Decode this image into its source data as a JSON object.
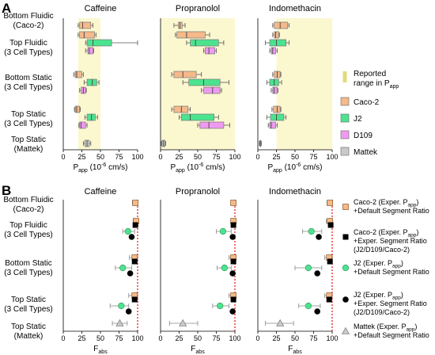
{
  "panel_labels": [
    "A",
    "B"
  ],
  "drugs": [
    "Caffeine",
    "Propranolol",
    "Indomethacin"
  ],
  "categories": [
    [
      "Bottom Fluidic",
      "(Caco-2)"
    ],
    [
      "Top Fluidic",
      "(3 Cell Types)"
    ],
    [
      "Bottom Static",
      "(3 Cell Types)"
    ],
    [
      "Top Static",
      "(3 Cell Types)"
    ],
    [
      "Top Static",
      "(Mattek)"
    ]
  ],
  "colors": {
    "caco2": "#f5b98a",
    "j2": "#4ce38f",
    "d109": "#ef9af0",
    "mattek": "#c9c9c9",
    "range": "#fbf7cf",
    "green_dot": "#4ce38f",
    "red_line": "#e02424"
  },
  "legend_A": {
    "range": [
      "Reported",
      "range in P",
      "app"
    ],
    "items": [
      {
        "label": "Caco-2",
        "color": "#f5b98a"
      },
      {
        "label": "J2",
        "color": "#4ce38f"
      },
      {
        "label": "D109",
        "color": "#ef9af0"
      },
      {
        "label": "Mattek",
        "color": "#c9c9c9"
      }
    ]
  },
  "legend_B": [
    {
      "marker": "square-orange",
      "lines": [
        "Caco-2 (Exper. P",
        "app",
        ")",
        "+Default Segment Ratio"
      ]
    },
    {
      "marker": "square-black",
      "lines": [
        "Caco-2 (Exper. P",
        "app",
        ")",
        "+Exper. Segment Ratio",
        "(J2/D109/Caco-2)"
      ]
    },
    {
      "marker": "circle-green",
      "lines": [
        "J2 (Exper. P",
        "app",
        ")",
        "+Default Segment Ratio"
      ]
    },
    {
      "marker": "circle-black",
      "lines": [
        "J2 (Exper. P",
        "app",
        ")",
        "+Exper. Segment Ratio",
        "(J2/D109/Caco-2)"
      ]
    },
    {
      "marker": "triangle-gray",
      "lines": [
        "Mattek (Exper. P",
        "app",
        ")",
        "+Default Segment Ratio"
      ]
    }
  ],
  "xaxis_A": {
    "label_main": "P",
    "label_sub": "app",
    "label_unit": " (10",
    "label_exp": "-6",
    "label_end": " cm/s)",
    "ticks": [
      0,
      25,
      50,
      75,
      100
    ],
    "range": [
      0,
      100
    ]
  },
  "xaxis_B": {
    "label_main": "F",
    "label_sub": "abs",
    "ticks": [
      0,
      25,
      50,
      75,
      100
    ],
    "range": [
      0,
      100
    ]
  },
  "chart_data": [
    {
      "type": "box",
      "title": "Caffeine",
      "panel": "A",
      "reported_range": [
        20,
        50
      ],
      "rows": [
        {
          "category": "Bottom Fluidic (Caco-2)",
          "boxes": [
            {
              "series": "Caco-2",
              "min": 20,
              "q1": 22,
              "median": 26,
              "q3": 37,
              "max": 40
            }
          ]
        },
        {
          "category": "Top Fluidic (3 Cell Types)",
          "boxes": [
            {
              "series": "Caco-2",
              "min": 20,
              "q1": 22,
              "median": 28,
              "q3": 42,
              "max": 44
            },
            {
              "series": "J2",
              "min": 30,
              "q1": 32,
              "median": 40,
              "q3": 65,
              "max": 100
            },
            {
              "series": "D109",
              "min": 30,
              "q1": 33,
              "median": 35,
              "q3": 40,
              "max": 41
            }
          ]
        },
        {
          "category": "Bottom Static (3 Cell Types)",
          "boxes": [
            {
              "series": "Caco-2",
              "min": 14,
              "q1": 16,
              "median": 18,
              "q3": 25,
              "max": 27
            },
            {
              "series": "J2",
              "min": 28,
              "q1": 32,
              "median": 39,
              "q3": 45,
              "max": 48
            },
            {
              "series": "D109",
              "min": 22,
              "q1": 24,
              "median": 27,
              "q3": 30,
              "max": 31
            }
          ]
        },
        {
          "category": "Top Static (3 Cell Types)",
          "boxes": [
            {
              "series": "Caco-2",
              "min": 15,
              "q1": 16,
              "median": 18,
              "q3": 22,
              "max": 23
            },
            {
              "series": "J2",
              "min": 29,
              "q1": 32,
              "median": 38,
              "q3": 43,
              "max": 46
            },
            {
              "series": "D109",
              "min": 21,
              "q1": 22,
              "median": 24,
              "q3": 30,
              "max": 32
            }
          ]
        },
        {
          "category": "Top Static (Mattek)",
          "boxes": [
            {
              "series": "Mattek",
              "min": 27,
              "q1": 29,
              "median": 32,
              "q3": 35,
              "max": 37
            }
          ]
        }
      ]
    },
    {
      "type": "box",
      "title": "Propranolol",
      "panel": "A",
      "reported_range": [
        0,
        100
      ],
      "rows": [
        {
          "category": "Bottom Fluidic (Caco-2)",
          "boxes": [
            {
              "series": "Caco-2",
              "min": 18,
              "q1": 24,
              "median": 26,
              "q3": 29,
              "max": 33
            }
          ]
        },
        {
          "category": "Top Fluidic (3 Cell Types)",
          "boxes": [
            {
              "series": "Caco-2",
              "min": 20,
              "q1": 22,
              "median": 35,
              "q3": 60,
              "max": 66
            },
            {
              "series": "J2",
              "min": 35,
              "q1": 40,
              "median": 47,
              "q3": 78,
              "max": 85
            },
            {
              "series": "D109",
              "min": 58,
              "q1": 60,
              "median": 65,
              "q3": 73,
              "max": 75
            }
          ]
        },
        {
          "category": "Bottom Static (3 Cell Types)",
          "boxes": [
            {
              "series": "Caco-2",
              "min": 15,
              "q1": 18,
              "median": 30,
              "q3": 48,
              "max": 55
            },
            {
              "series": "J2",
              "min": 30,
              "q1": 38,
              "median": 58,
              "q3": 80,
              "max": 92
            },
            {
              "series": "D109",
              "min": 55,
              "q1": 58,
              "median": 70,
              "q3": 80,
              "max": 82
            }
          ]
        },
        {
          "category": "Top Static (3 Cell Types)",
          "boxes": [
            {
              "series": "Caco-2",
              "min": 15,
              "q1": 18,
              "median": 28,
              "q3": 37,
              "max": 40
            },
            {
              "series": "J2",
              "min": 25,
              "q1": 28,
              "median": 40,
              "q3": 72,
              "max": 78
            },
            {
              "series": "D109",
              "min": 50,
              "q1": 53,
              "median": 65,
              "q3": 85,
              "max": 93
            }
          ]
        },
        {
          "category": "Top Static (Mattek)",
          "boxes": [
            {
              "series": "Mattek",
              "min": 1,
              "q1": 2,
              "median": 4,
              "q3": 6,
              "max": 7
            }
          ]
        }
      ]
    },
    {
      "type": "box",
      "title": "Indomethacin",
      "panel": "A",
      "reported_range": [
        25,
        100
      ],
      "rows": [
        {
          "category": "Bottom Fluidic (Caco-2)",
          "boxes": [
            {
              "series": "Caco-2",
              "min": 20,
              "q1": 22,
              "median": 30,
              "q3": 40,
              "max": 42
            }
          ]
        },
        {
          "category": "Top Fluidic (3 Cell Types)",
          "boxes": [
            {
              "series": "Caco-2",
              "min": 20,
              "q1": 22,
              "median": 24,
              "q3": 28,
              "max": 29
            },
            {
              "series": "J2",
              "min": 10,
              "q1": 16,
              "median": 25,
              "q3": 38,
              "max": 42
            },
            {
              "series": "D109",
              "min": 16,
              "q1": 18,
              "median": 20,
              "q3": 24,
              "max": 26
            }
          ]
        },
        {
          "category": "Bottom Static (3 Cell Types)",
          "boxes": [
            {
              "series": "Caco-2",
              "min": 20,
              "q1": 22,
              "median": 26,
              "q3": 30,
              "max": 31
            },
            {
              "series": "J2",
              "min": 12,
              "q1": 16,
              "median": 22,
              "q3": 28,
              "max": 32
            },
            {
              "series": "D109",
              "min": 18,
              "q1": 20,
              "median": 22,
              "q3": 26,
              "max": 27
            }
          ]
        },
        {
          "category": "Top Static (3 Cell Types)",
          "boxes": [
            {
              "series": "Caco-2",
              "min": 19,
              "q1": 21,
              "median": 26,
              "q3": 30,
              "max": 31
            },
            {
              "series": "J2",
              "min": 12,
              "q1": 17,
              "median": 25,
              "q3": 35,
              "max": 38
            },
            {
              "series": "D109",
              "min": 14,
              "q1": 16,
              "median": 18,
              "q3": 24,
              "max": 26
            }
          ]
        },
        {
          "category": "Top Static (Mattek)",
          "boxes": [
            {
              "series": "Mattek",
              "min": 2,
              "q1": 3,
              "median": 3,
              "q3": 4,
              "max": 5
            }
          ]
        }
      ]
    },
    {
      "type": "box",
      "title": "Caffeine",
      "panel": "B",
      "reference_line": 100,
      "rows": [
        {
          "category": "Bottom Fluidic (Caco-2)",
          "points": [
            {
              "marker": "square-orange",
              "value": 97,
              "lo": 93,
              "hi": 100
            }
          ]
        },
        {
          "category": "Top Fluidic (3 Cell Types)",
          "points": [
            {
              "marker": "square-orange",
              "value": 98,
              "lo": 94,
              "hi": 100
            },
            {
              "marker": "square-black",
              "value": 97,
              "lo": null,
              "hi": null
            },
            {
              "marker": "circle-green",
              "value": 87,
              "lo": 80,
              "hi": 96
            },
            {
              "marker": "circle-black",
              "value": 92,
              "lo": null,
              "hi": null
            }
          ]
        },
        {
          "category": "Bottom Static (3 Cell Types)",
          "points": [
            {
              "marker": "square-orange",
              "value": 96,
              "lo": 89,
              "hi": 100
            },
            {
              "marker": "square-black",
              "value": 96,
              "lo": null,
              "hi": null
            },
            {
              "marker": "circle-green",
              "value": 80,
              "lo": 70,
              "hi": 92
            },
            {
              "marker": "circle-black",
              "value": 90,
              "lo": null,
              "hi": null
            }
          ]
        },
        {
          "category": "Top Static (3 Cell Types)",
          "points": [
            {
              "marker": "square-orange",
              "value": 96,
              "lo": 88,
              "hi": 100
            },
            {
              "marker": "square-black",
              "value": 96,
              "lo": null,
              "hi": null
            },
            {
              "marker": "circle-green",
              "value": 78,
              "lo": 63,
              "hi": 88
            },
            {
              "marker": "circle-black",
              "value": 88,
              "lo": null,
              "hi": null
            }
          ]
        },
        {
          "category": "Top Static (Mattek)",
          "points": [
            {
              "marker": "triangle-gray",
              "value": 76,
              "lo": 66,
              "hi": 86
            }
          ]
        }
      ]
    },
    {
      "type": "box",
      "title": "Propranolol",
      "panel": "B",
      "reference_line": 100,
      "rows": [
        {
          "category": "Bottom Fluidic (Caco-2)",
          "points": [
            {
              "marker": "square-orange",
              "value": 98,
              "lo": 95,
              "hi": 100
            }
          ]
        },
        {
          "category": "Top Fluidic (3 Cell Types)",
          "points": [
            {
              "marker": "square-orange",
              "value": 98,
              "lo": 95,
              "hi": 100
            },
            {
              "marker": "square-black",
              "value": 98,
              "lo": null,
              "hi": null
            },
            {
              "marker": "circle-green",
              "value": 84,
              "lo": 75,
              "hi": 95
            },
            {
              "marker": "circle-black",
              "value": 97,
              "lo": null,
              "hi": null
            }
          ]
        },
        {
          "category": "Bottom Static (3 Cell Types)",
          "points": [
            {
              "marker": "square-orange",
              "value": 98,
              "lo": 92,
              "hi": 100
            },
            {
              "marker": "square-black",
              "value": 98,
              "lo": null,
              "hi": null
            },
            {
              "marker": "circle-green",
              "value": 86,
              "lo": 76,
              "hi": 95
            },
            {
              "marker": "circle-black",
              "value": 97,
              "lo": null,
              "hi": null
            }
          ]
        },
        {
          "category": "Top Static (3 Cell Types)",
          "points": [
            {
              "marker": "square-orange",
              "value": 98,
              "lo": 92,
              "hi": 100
            },
            {
              "marker": "square-black",
              "value": 98,
              "lo": null,
              "hi": null
            },
            {
              "marker": "circle-green",
              "value": 80,
              "lo": 70,
              "hi": 92
            },
            {
              "marker": "circle-black",
              "value": 97,
              "lo": null,
              "hi": null
            }
          ]
        },
        {
          "category": "Top Static (Mattek)",
          "points": [
            {
              "marker": "triangle-gray",
              "value": 30,
              "lo": 12,
              "hi": 50
            }
          ]
        }
      ]
    },
    {
      "type": "box",
      "title": "Indomethacin",
      "panel": "B",
      "reference_line": 100,
      "rows": [
        {
          "category": "Bottom Fluidic (Caco-2)",
          "points": [
            {
              "marker": "square-orange",
              "value": 97,
              "lo": 93,
              "hi": 100
            }
          ]
        },
        {
          "category": "Top Fluidic (3 Cell Types)",
          "points": [
            {
              "marker": "square-orange",
              "value": 97,
              "lo": 92,
              "hi": 100
            },
            {
              "marker": "square-black",
              "value": 98,
              "lo": null,
              "hi": null
            },
            {
              "marker": "circle-green",
              "value": 72,
              "lo": 60,
              "hi": 86
            },
            {
              "marker": "circle-black",
              "value": 82,
              "lo": null,
              "hi": null
            }
          ]
        },
        {
          "category": "Bottom Static (3 Cell Types)",
          "points": [
            {
              "marker": "square-orange",
              "value": 96,
              "lo": 90,
              "hi": 100
            },
            {
              "marker": "square-black",
              "value": 97,
              "lo": null,
              "hi": null
            },
            {
              "marker": "circle-green",
              "value": 68,
              "lo": 50,
              "hi": 86
            },
            {
              "marker": "circle-black",
              "value": 80,
              "lo": null,
              "hi": null
            }
          ]
        },
        {
          "category": "Top Static (3 Cell Types)",
          "points": [
            {
              "marker": "square-orange",
              "value": 96,
              "lo": 90,
              "hi": 100
            },
            {
              "marker": "square-black",
              "value": 96,
              "lo": null,
              "hi": null
            },
            {
              "marker": "circle-green",
              "value": 68,
              "lo": 55,
              "hi": 84
            },
            {
              "marker": "circle-black",
              "value": 80,
              "lo": null,
              "hi": null
            }
          ]
        },
        {
          "category": "Top Static (Mattek)",
          "points": [
            {
              "marker": "triangle-gray",
              "value": 30,
              "lo": 10,
              "hi": 48
            }
          ]
        }
      ]
    }
  ]
}
